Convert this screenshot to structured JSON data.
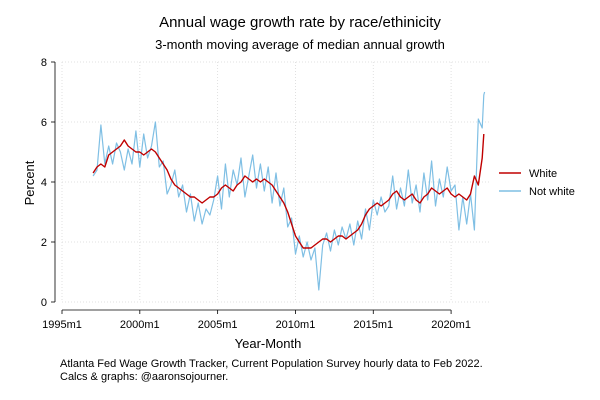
{
  "chart_data": {
    "type": "line",
    "title": "Annual wage growth rate by race/ethinicity",
    "subtitle": "3-month moving average of median annual growth",
    "xlabel": "Year-Month",
    "ylabel": "Percent",
    "xlim": [
      1995,
      2022.5
    ],
    "ylim": [
      0,
      8
    ],
    "x_ticks": [
      1995,
      2000,
      2005,
      2010,
      2015,
      2020
    ],
    "x_tick_labels": [
      "1995m1",
      "2000m1",
      "2005m1",
      "2010m1",
      "2015m1",
      "2020m1"
    ],
    "y_ticks": [
      0,
      2,
      4,
      6,
      8
    ],
    "y_tick_labels": [
      "0",
      "2",
      "4",
      "6",
      "8"
    ],
    "grid": true,
    "legend_position": "right",
    "series": [
      {
        "name": "White",
        "color": "#c00000",
        "points": [
          [
            1997.0,
            4.3
          ],
          [
            1997.25,
            4.5
          ],
          [
            1997.5,
            4.6
          ],
          [
            1997.75,
            4.5
          ],
          [
            1998.0,
            4.9
          ],
          [
            1998.25,
            5.0
          ],
          [
            1998.5,
            5.1
          ],
          [
            1998.75,
            5.2
          ],
          [
            1999.0,
            5.4
          ],
          [
            1999.25,
            5.2
          ],
          [
            1999.5,
            5.1
          ],
          [
            1999.75,
            5.0
          ],
          [
            2000.0,
            5.0
          ],
          [
            2000.25,
            4.9
          ],
          [
            2000.5,
            5.0
          ],
          [
            2000.75,
            5.1
          ],
          [
            2001.0,
            5.0
          ],
          [
            2001.25,
            4.8
          ],
          [
            2001.5,
            4.6
          ],
          [
            2001.75,
            4.4
          ],
          [
            2002.0,
            4.1
          ],
          [
            2002.25,
            3.9
          ],
          [
            2002.5,
            3.8
          ],
          [
            2002.75,
            3.7
          ],
          [
            2003.0,
            3.6
          ],
          [
            2003.25,
            3.5
          ],
          [
            2003.5,
            3.5
          ],
          [
            2003.75,
            3.4
          ],
          [
            2004.0,
            3.3
          ],
          [
            2004.25,
            3.4
          ],
          [
            2004.5,
            3.5
          ],
          [
            2004.75,
            3.5
          ],
          [
            2005.0,
            3.6
          ],
          [
            2005.25,
            3.8
          ],
          [
            2005.5,
            3.9
          ],
          [
            2005.75,
            3.8
          ],
          [
            2006.0,
            3.7
          ],
          [
            2006.25,
            3.9
          ],
          [
            2006.5,
            4.0
          ],
          [
            2006.75,
            4.2
          ],
          [
            2007.0,
            4.1
          ],
          [
            2007.25,
            4.0
          ],
          [
            2007.5,
            4.1
          ],
          [
            2007.75,
            4.0
          ],
          [
            2008.0,
            4.1
          ],
          [
            2008.25,
            4.0
          ],
          [
            2008.5,
            3.9
          ],
          [
            2008.75,
            3.7
          ],
          [
            2009.0,
            3.5
          ],
          [
            2009.25,
            3.3
          ],
          [
            2009.5,
            3.0
          ],
          [
            2009.75,
            2.6
          ],
          [
            2010.0,
            2.2
          ],
          [
            2010.25,
            2.0
          ],
          [
            2010.5,
            1.8
          ],
          [
            2010.75,
            1.8
          ],
          [
            2011.0,
            1.8
          ],
          [
            2011.25,
            1.9
          ],
          [
            2011.5,
            2.0
          ],
          [
            2011.75,
            2.1
          ],
          [
            2012.0,
            2.1
          ],
          [
            2012.25,
            2.0
          ],
          [
            2012.5,
            2.1
          ],
          [
            2012.75,
            2.2
          ],
          [
            2013.0,
            2.2
          ],
          [
            2013.25,
            2.1
          ],
          [
            2013.5,
            2.2
          ],
          [
            2013.75,
            2.3
          ],
          [
            2014.0,
            2.4
          ],
          [
            2014.25,
            2.6
          ],
          [
            2014.5,
            2.9
          ],
          [
            2014.75,
            3.1
          ],
          [
            2015.0,
            3.2
          ],
          [
            2015.25,
            3.3
          ],
          [
            2015.5,
            3.2
          ],
          [
            2015.75,
            3.3
          ],
          [
            2016.0,
            3.4
          ],
          [
            2016.25,
            3.6
          ],
          [
            2016.5,
            3.7
          ],
          [
            2016.75,
            3.5
          ],
          [
            2017.0,
            3.4
          ],
          [
            2017.25,
            3.5
          ],
          [
            2017.5,
            3.6
          ],
          [
            2017.75,
            3.4
          ],
          [
            2018.0,
            3.3
          ],
          [
            2018.25,
            3.5
          ],
          [
            2018.5,
            3.6
          ],
          [
            2018.75,
            3.8
          ],
          [
            2019.0,
            3.7
          ],
          [
            2019.25,
            3.6
          ],
          [
            2019.5,
            3.7
          ],
          [
            2019.75,
            3.8
          ],
          [
            2020.0,
            3.6
          ],
          [
            2020.25,
            3.5
          ],
          [
            2020.5,
            3.6
          ],
          [
            2020.75,
            3.5
          ],
          [
            2021.0,
            3.4
          ],
          [
            2021.25,
            3.6
          ],
          [
            2021.5,
            4.2
          ],
          [
            2021.75,
            3.9
          ],
          [
            2022.0,
            4.8
          ],
          [
            2022.1,
            5.6
          ]
        ]
      },
      {
        "name": "Not white",
        "color": "#7fbfe4",
        "points": [
          [
            1997.0,
            4.2
          ],
          [
            1997.25,
            4.4
          ],
          [
            1997.5,
            5.9
          ],
          [
            1997.75,
            4.6
          ],
          [
            1998.0,
            5.2
          ],
          [
            1998.25,
            4.6
          ],
          [
            1998.5,
            5.3
          ],
          [
            1998.75,
            5.0
          ],
          [
            1999.0,
            4.4
          ],
          [
            1999.25,
            5.1
          ],
          [
            1999.5,
            4.6
          ],
          [
            1999.75,
            5.7
          ],
          [
            2000.0,
            4.5
          ],
          [
            2000.25,
            5.6
          ],
          [
            2000.5,
            4.8
          ],
          [
            2000.75,
            5.2
          ],
          [
            2001.0,
            6.0
          ],
          [
            2001.25,
            4.5
          ],
          [
            2001.5,
            4.7
          ],
          [
            2001.75,
            3.6
          ],
          [
            2002.0,
            3.9
          ],
          [
            2002.25,
            4.4
          ],
          [
            2002.5,
            3.5
          ],
          [
            2002.75,
            3.9
          ],
          [
            2003.0,
            3.0
          ],
          [
            2003.25,
            3.6
          ],
          [
            2003.5,
            2.7
          ],
          [
            2003.75,
            3.3
          ],
          [
            2004.0,
            2.6
          ],
          [
            2004.25,
            3.1
          ],
          [
            2004.5,
            2.9
          ],
          [
            2004.75,
            3.4
          ],
          [
            2005.0,
            4.2
          ],
          [
            2005.25,
            3.1
          ],
          [
            2005.5,
            4.6
          ],
          [
            2005.75,
            3.5
          ],
          [
            2006.0,
            4.4
          ],
          [
            2006.25,
            3.9
          ],
          [
            2006.5,
            4.8
          ],
          [
            2006.75,
            3.5
          ],
          [
            2007.0,
            4.2
          ],
          [
            2007.25,
            4.9
          ],
          [
            2007.5,
            3.8
          ],
          [
            2007.75,
            4.6
          ],
          [
            2008.0,
            3.7
          ],
          [
            2008.25,
            4.5
          ],
          [
            2008.5,
            3.3
          ],
          [
            2008.75,
            4.3
          ],
          [
            2009.0,
            3.2
          ],
          [
            2009.25,
            3.8
          ],
          [
            2009.5,
            2.5
          ],
          [
            2009.75,
            2.8
          ],
          [
            2010.0,
            1.6
          ],
          [
            2010.25,
            2.2
          ],
          [
            2010.5,
            1.5
          ],
          [
            2010.75,
            2.0
          ],
          [
            2011.0,
            1.4
          ],
          [
            2011.25,
            1.8
          ],
          [
            2011.5,
            0.4
          ],
          [
            2011.75,
            1.9
          ],
          [
            2012.0,
            2.3
          ],
          [
            2012.25,
            1.7
          ],
          [
            2012.5,
            2.4
          ],
          [
            2012.75,
            1.9
          ],
          [
            2013.0,
            2.5
          ],
          [
            2013.25,
            2.1
          ],
          [
            2013.5,
            2.6
          ],
          [
            2013.75,
            1.9
          ],
          [
            2014.0,
            2.7
          ],
          [
            2014.25,
            2.1
          ],
          [
            2014.5,
            3.1
          ],
          [
            2014.75,
            2.4
          ],
          [
            2015.0,
            3.4
          ],
          [
            2015.25,
            2.9
          ],
          [
            2015.5,
            3.5
          ],
          [
            2015.75,
            3.0
          ],
          [
            2016.0,
            3.2
          ],
          [
            2016.25,
            4.2
          ],
          [
            2016.5,
            3.1
          ],
          [
            2016.75,
            3.8
          ],
          [
            2017.0,
            3.2
          ],
          [
            2017.25,
            4.4
          ],
          [
            2017.5,
            3.3
          ],
          [
            2017.75,
            3.9
          ],
          [
            2018.0,
            3.0
          ],
          [
            2018.25,
            4.3
          ],
          [
            2018.5,
            3.4
          ],
          [
            2018.75,
            4.7
          ],
          [
            2019.0,
            3.2
          ],
          [
            2019.25,
            4.1
          ],
          [
            2019.5,
            3.5
          ],
          [
            2019.75,
            4.5
          ],
          [
            2020.0,
            3.7
          ],
          [
            2020.25,
            3.9
          ],
          [
            2020.5,
            2.4
          ],
          [
            2020.75,
            3.5
          ],
          [
            2021.0,
            2.6
          ],
          [
            2021.25,
            3.6
          ],
          [
            2021.5,
            2.4
          ],
          [
            2021.75,
            6.1
          ],
          [
            2022.0,
            5.8
          ],
          [
            2022.1,
            6.9
          ],
          [
            2022.15,
            7.0
          ]
        ]
      }
    ]
  },
  "note": {
    "line1": "Atlanta Fed Wage Growth Tracker, Current Population Survey hourly data to Feb 2022.",
    "line2": "Calcs & graphs: @aaronsojourner."
  }
}
